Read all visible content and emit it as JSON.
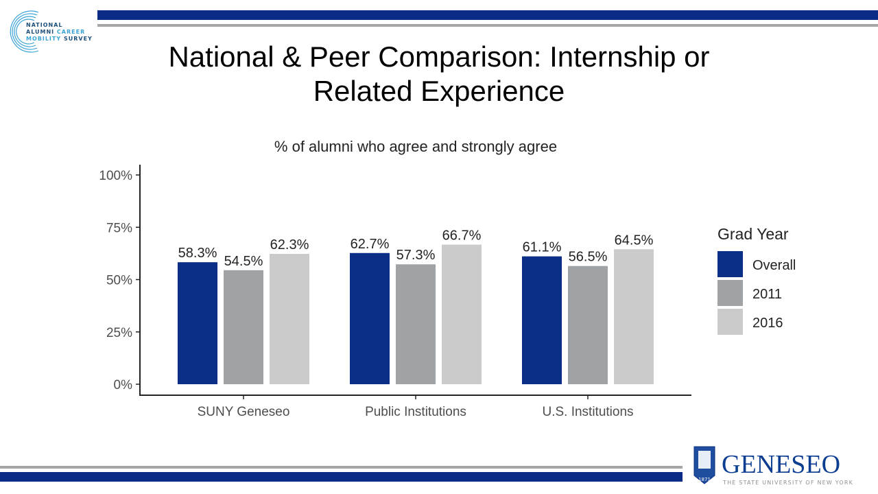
{
  "slide": {
    "title_line1": "National & Peer Comparison: Internship or",
    "title_line2": "Related Experience",
    "logo_left_text": [
      "NATIONAL",
      "ALUMNI CAREER",
      "MOBILITY SURVEY"
    ],
    "logo_right_text": "GENESEO",
    "logo_right_subtext": "THE STATE UNIVERSITY OF NEW YORK",
    "logo_right_year": "1871",
    "colors": {
      "brand_blue": "#0b2c86",
      "rule_gray": "#a6a6a6"
    }
  },
  "chart_data": {
    "type": "bar",
    "title": "% of alumni who agree and strongly agree",
    "categories": [
      "SUNY Geneseo",
      "Public Institutions",
      "U.S. Institutions"
    ],
    "series": [
      {
        "name": "Overall",
        "color": "#0b2f86",
        "values": [
          58.3,
          62.7,
          61.1
        ],
        "labels": [
          "58.3%",
          "62.7%",
          "61.1%"
        ]
      },
      {
        "name": "2011",
        "color": "#a0a3a5",
        "values": [
          54.5,
          57.3,
          56.5
        ],
        "labels": [
          "54.5%",
          "57.3%",
          "56.5%"
        ]
      },
      {
        "name": "2016",
        "color": "#cbcbcb",
        "values": [
          62.3,
          66.7,
          64.5
        ],
        "labels": [
          "62.3%",
          "66.7%",
          "64.5%"
        ]
      }
    ],
    "ylim": [
      0,
      100
    ],
    "yticks": [
      0,
      25,
      50,
      75,
      100
    ],
    "ytick_labels": [
      "0%",
      "25%",
      "50%",
      "75%",
      "100%"
    ],
    "xlabel": "",
    "ylabel": "",
    "legend_title": "Grad Year",
    "legend_position": "right",
    "grid": false
  }
}
